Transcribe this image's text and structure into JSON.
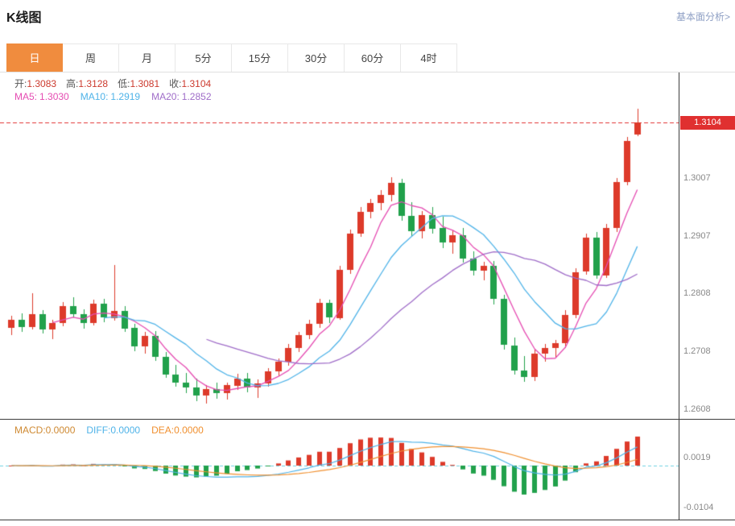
{
  "header": {
    "title": "K线图",
    "link_label": "基本面分析>"
  },
  "tabs": {
    "items": [
      "日",
      "周",
      "月",
      "5分",
      "15分",
      "30分",
      "60分",
      "4时"
    ],
    "active_index": 0
  },
  "ohlc_info": {
    "open_label": "开:",
    "open": "1.3083",
    "high_label": "高:",
    "high": "1.3128",
    "low_label": "低:",
    "low": "1.3081",
    "close_label": "收:",
    "close": "1.3104"
  },
  "ma_info": {
    "ma5_label": "MA5:",
    "ma5": "1.3030",
    "ma10_label": "MA10:",
    "ma10": "1.2919",
    "ma20_label": "MA20:",
    "ma20": "1.2852"
  },
  "macd_info": {
    "macd_label": "MACD:",
    "macd": "0.0000",
    "diff_label": "DIFF:",
    "diff": "0.0000",
    "dea_label": "DEA:",
    "dea": "0.0000"
  },
  "axis": {
    "last_price": "1.3104",
    "main_ticks": [
      "1.3007",
      "1.2907",
      "1.2808",
      "1.2708",
      "1.2608"
    ],
    "macd_ticks": [
      "0.0019",
      "-0.0104"
    ]
  },
  "colors": {
    "up": "#dd3a2a",
    "down": "#21a14b",
    "ma5": "#e54cb2",
    "ma10": "#4fb3e8",
    "ma20": "#9f6cc8",
    "dea": "#f09030",
    "price_line": "#e03030",
    "badge_bg": "#e03030",
    "zero_line": "#6fd0e0",
    "active_tab": "#f08c3e"
  },
  "chart_data": [
    {
      "type": "candlestick",
      "title": "K线图",
      "period": "日",
      "ohlc_columns": [
        "open",
        "high",
        "low",
        "close"
      ],
      "ohlc": [
        [
          1.2748,
          1.277,
          1.2736,
          1.2762
        ],
        [
          1.2762,
          1.2774,
          1.2742,
          1.275
        ],
        [
          1.275,
          1.2808,
          1.2746,
          1.2772
        ],
        [
          1.2772,
          1.2779,
          1.2738,
          1.2746
        ],
        [
          1.2746,
          1.2763,
          1.2729,
          1.2757
        ],
        [
          1.2757,
          1.2793,
          1.2751,
          1.2786
        ],
        [
          1.2786,
          1.2801,
          1.2766,
          1.2772
        ],
        [
          1.2772,
          1.2781,
          1.2747,
          1.2756
        ],
        [
          1.2756,
          1.2797,
          1.2752,
          1.279
        ],
        [
          1.279,
          1.2799,
          1.2759,
          1.2766
        ],
        [
          1.2766,
          1.2857,
          1.2761,
          1.2778
        ],
        [
          1.2778,
          1.2786,
          1.2741,
          1.2748
        ],
        [
          1.2748,
          1.2756,
          1.2709,
          1.2716
        ],
        [
          1.2716,
          1.2741,
          1.2704,
          1.2734
        ],
        [
          1.2734,
          1.2743,
          1.2691,
          1.2698
        ],
        [
          1.2698,
          1.2706,
          1.2661,
          1.2668
        ],
        [
          1.2668,
          1.2684,
          1.2647,
          1.2654
        ],
        [
          1.2654,
          1.2671,
          1.2636,
          1.2645
        ],
        [
          1.2645,
          1.266,
          1.2621,
          1.2631
        ],
        [
          1.2631,
          1.2649,
          1.2617,
          1.2642
        ],
        [
          1.2642,
          1.2654,
          1.2626,
          1.2635
        ],
        [
          1.2635,
          1.2653,
          1.2624,
          1.2649
        ],
        [
          1.2649,
          1.2669,
          1.2641,
          1.2661
        ],
        [
          1.2661,
          1.2671,
          1.2637,
          1.2645
        ],
        [
          1.2645,
          1.2659,
          1.2627,
          1.2652
        ],
        [
          1.2652,
          1.2679,
          1.2647,
          1.2673
        ],
        [
          1.2673,
          1.2696,
          1.2666,
          1.269
        ],
        [
          1.269,
          1.2721,
          1.2684,
          1.2714
        ],
        [
          1.2714,
          1.2742,
          1.2707,
          1.2736
        ],
        [
          1.2736,
          1.2763,
          1.2729,
          1.2755
        ],
        [
          1.2755,
          1.2799,
          1.2749,
          1.2791
        ],
        [
          1.2791,
          1.2797,
          1.2757,
          1.2766
        ],
        [
          1.2766,
          1.2856,
          1.2762,
          1.2849
        ],
        [
          1.2849,
          1.2919,
          1.2843,
          1.2912
        ],
        [
          1.2912,
          1.2957,
          1.2906,
          1.2949
        ],
        [
          1.2949,
          1.2971,
          1.2937,
          1.2964
        ],
        [
          1.2964,
          1.2986,
          1.2951,
          1.2978
        ],
        [
          1.2978,
          1.3009,
          1.2967,
          1.2999
        ],
        [
          1.2999,
          1.3006,
          1.2934,
          1.2942
        ],
        [
          1.2942,
          1.2966,
          1.2907,
          1.2916
        ],
        [
          1.2916,
          1.2951,
          1.2904,
          1.2944
        ],
        [
          1.2944,
          1.2957,
          1.2911,
          1.2921
        ],
        [
          1.2921,
          1.2941,
          1.2887,
          1.2896
        ],
        [
          1.2896,
          1.2917,
          1.2877,
          1.2909
        ],
        [
          1.2909,
          1.2921,
          1.2861,
          1.2868
        ],
        [
          1.2868,
          1.2881,
          1.2839,
          1.2847
        ],
        [
          1.2847,
          1.2863,
          1.2831,
          1.2855
        ],
        [
          1.2855,
          1.2864,
          1.2789,
          1.2798
        ],
        [
          1.2798,
          1.2806,
          1.2711,
          1.2718
        ],
        [
          1.2718,
          1.2731,
          1.2667,
          1.2675
        ],
        [
          1.2675,
          1.2699,
          1.2654,
          1.2664
        ],
        [
          1.2664,
          1.2711,
          1.2656,
          1.2704
        ],
        [
          1.2704,
          1.2721,
          1.2691,
          1.2714
        ],
        [
          1.2714,
          1.2727,
          1.2697,
          1.2722
        ],
        [
          1.2722,
          1.2779,
          1.2714,
          1.2771
        ],
        [
          1.2771,
          1.2851,
          1.2764,
          1.2845
        ],
        [
          1.2845,
          1.2911,
          1.284,
          1.2904
        ],
        [
          1.2904,
          1.2914,
          1.2833,
          1.2839
        ],
        [
          1.2839,
          1.2928,
          1.2834,
          1.2921
        ],
        [
          1.2921,
          1.3008,
          1.2915,
          1.3001
        ],
        [
          1.3001,
          1.3079,
          1.2995,
          1.3072
        ],
        [
          1.3083,
          1.3128,
          1.3081,
          1.3104
        ]
      ],
      "ylim": [
        1.2591,
        1.319
      ],
      "y_ticks": [
        1.3104,
        1.3007,
        1.2907,
        1.2808,
        1.2708,
        1.2608
      ],
      "last_price_line": 1.3104,
      "latest": {
        "open": 1.3083,
        "high": 1.3128,
        "low": 1.3081,
        "close": 1.3104
      },
      "overlays": [
        {
          "name": "MA5",
          "latest": 1.303
        },
        {
          "name": "MA10",
          "latest": 1.2919
        },
        {
          "name": "MA20",
          "latest": 1.2852
        }
      ]
    },
    {
      "type": "bar",
      "title": "MACD",
      "series": [
        {
          "name": "MACD",
          "latest": 0.0
        },
        {
          "name": "DIFF",
          "latest": 0.0
        },
        {
          "name": "DEA",
          "latest": 0.0
        }
      ],
      "y_ticks": [
        0.0019,
        -0.0104
      ],
      "derived_from": "ohlc closes (EMA12, EMA26, EMA9)"
    }
  ]
}
